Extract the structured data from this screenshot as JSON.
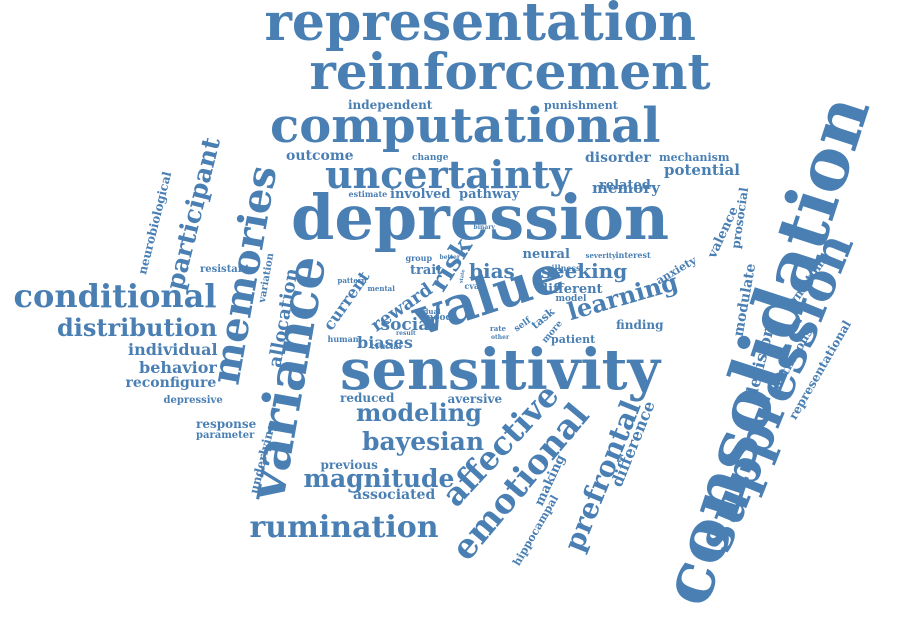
{
  "palette": {
    "word_color": "#4a7fb3",
    "background": "#ffffff"
  },
  "words": [
    "representation",
    "reinforcement",
    "computational",
    "uncertainty",
    "depression",
    "sensitivity",
    "consolidation",
    "suppression",
    "variance",
    "memories",
    "value",
    "conditional",
    "distribution",
    "rumination",
    "modeling",
    "bayesian",
    "magnitude",
    "affective",
    "emotional",
    "prefrontal",
    "learning",
    "participant",
    "allocation",
    "individual",
    "behavior",
    "reconfigure",
    "outcome",
    "involved",
    "pathway",
    "related",
    "potential",
    "memory",
    "disorder",
    "mechanism",
    "independent",
    "punishment",
    "risk",
    "bias",
    "seeking",
    "reward",
    "social",
    "neural",
    "trait",
    "current",
    "biases",
    "finding",
    "decision",
    "modulate",
    "symptom",
    "representational",
    "valence",
    "prosocial",
    "neurobiological",
    "resistant",
    "variation",
    "depressive",
    "response",
    "parameter",
    "underlying",
    "previous",
    "associated",
    "reduced",
    "aversive",
    "making",
    "hippocampal",
    "difference",
    "anxiety",
    "different",
    "patient",
    "crucial",
    "human",
    "change",
    "estimate",
    "group",
    "better",
    "illness",
    "severity",
    "interest",
    "pattern",
    "mental",
    "dual",
    "model",
    "mood",
    "self",
    "task",
    "more",
    "rate",
    "other",
    "result",
    "state",
    "cvar",
    "binary",
    "continuous"
  ]
}
